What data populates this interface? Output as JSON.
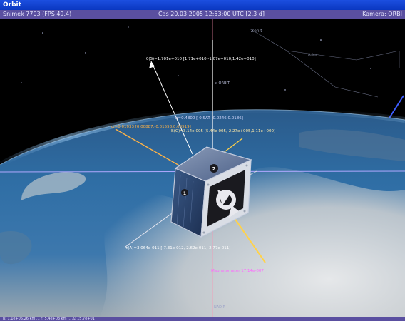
{
  "window": {
    "title": "Orbit"
  },
  "status": {
    "frame": "Snímek 7703 (FPS 49.4)",
    "time": "Čas 20.03.2005 12:53:00 UTC [2.3 d]",
    "camera": "Kamera: ORBI"
  },
  "bottom_status": "h: 1.1e+05.26 km  ...  r: 5.4e+03 km  ...  Δ: 15.7e+01",
  "labels": {
    "zenit": "Zenit",
    "nadir": "NADIR",
    "x_orbit": "x ORBIT",
    "theta_s": "θ(S)=1.701e+010 [1.71e+010,-1.07e+010,1.42e+010]",
    "sat_vector": "h=0.4800 [-0.SAT -0.0246,0.0186]",
    "sat_b": "B(G)=3.14e-005 [5.44e-005,-2.27e+005,1.11e+000]",
    "left_vec": "ω=0.01033 [0.00887,-0.01558,0.00519]",
    "bottom_vec": "τ(A)=3.064e-011 [-7.31e-012,-2.62e-011,-2.77e-011]",
    "magenta_vec": "Magnetometer  17.14e-007",
    "constellation": "Aries"
  },
  "colors": {
    "titlebar": "#0a37c0",
    "statusbar": "#5a4fa0",
    "orbit_line": "#b0a8ff",
    "yellow_vec": "#ffd24a",
    "orange_vec": "#ffb347",
    "magenta": "#ff66ff",
    "pink_line": "#ff8fb0"
  },
  "icons": {
    "satellite": "cubesat-icon",
    "sun": "sun-marker-icon"
  }
}
